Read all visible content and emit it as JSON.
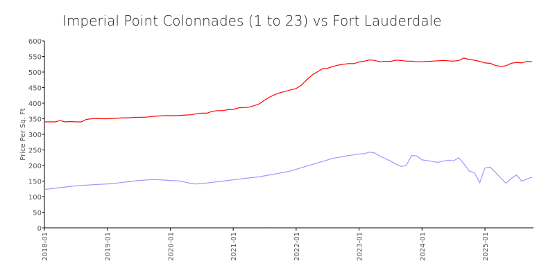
{
  "chart_data": {
    "type": "line",
    "title": "Imperial Point Colonnades (1 to 23) vs Fort Lauderdale",
    "xlabel": "",
    "ylabel": "Price Per Sq. Ft",
    "ylim": [
      0,
      600
    ],
    "yticks": [
      "0",
      "50",
      "100",
      "150",
      "200",
      "250",
      "300",
      "350",
      "400",
      "450",
      "500",
      "550",
      "600"
    ],
    "xticks": [
      "2018-01",
      "2019-01",
      "2020-01",
      "2021-01",
      "2022-01",
      "2023-01",
      "2024-01",
      "2025-01"
    ],
    "x_start": "2018-01",
    "x_step": "month",
    "grid": false,
    "series": [
      {
        "name": "Fort Lauderdale",
        "color": "#ff0000",
        "values": [
          340,
          340,
          340,
          344,
          340,
          341,
          340,
          340,
          348,
          350,
          351,
          350,
          350,
          351,
          352,
          353,
          353,
          354,
          355,
          355,
          356,
          358,
          359,
          360,
          360,
          360,
          361,
          362,
          363,
          366,
          368,
          368,
          374,
          376,
          376,
          379,
          380,
          385,
          386,
          387,
          392,
          398,
          410,
          420,
          428,
          434,
          438,
          443,
          447,
          458,
          475,
          490,
          500,
          510,
          512,
          518,
          522,
          525,
          527,
          527,
          532,
          535,
          539,
          537,
          533,
          534,
          534,
          538,
          537,
          535,
          535,
          533,
          533,
          534,
          535,
          536,
          537,
          536,
          535,
          537,
          545,
          540,
          538,
          534,
          529,
          528,
          521,
          518,
          520,
          528,
          531,
          529,
          534,
          533
        ]
      },
      {
        "name": "Imperial Point Colonnades (1 to 23)",
        "color": "#9999ff",
        "values": [
          123,
          125,
          127,
          129,
          131,
          133,
          135,
          136,
          137,
          138,
          139,
          140,
          141,
          142,
          144,
          146,
          148,
          150,
          152,
          153,
          154,
          155,
          154,
          153,
          152,
          151,
          150,
          146,
          142,
          141,
          142,
          144,
          146,
          148,
          150,
          152,
          154,
          156,
          158,
          160,
          162,
          164,
          167,
          170,
          173,
          176,
          179,
          183,
          188,
          193,
          198,
          203,
          208,
          213,
          218,
          223,
          226,
          229,
          232,
          234,
          237,
          238,
          243,
          240,
          230,
          222,
          214,
          205,
          197,
          200,
          232,
          231,
          218,
          216,
          213,
          210,
          214,
          217,
          215,
          225,
          205,
          182,
          177,
          145,
          192,
          195,
          178,
          160,
          143,
          158,
          170,
          150,
          157,
          163
        ]
      }
    ]
  }
}
